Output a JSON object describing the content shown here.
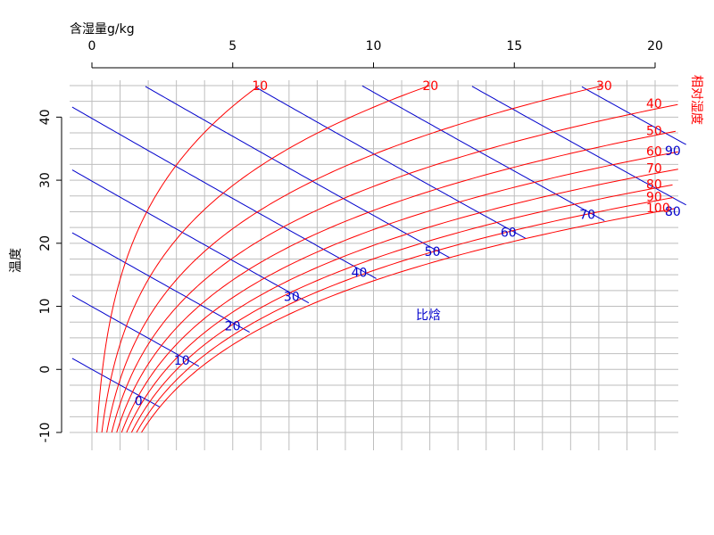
{
  "chart_data": {
    "type": "line",
    "title": "",
    "xlabel": "含湿量g/kg",
    "ylabel": "温度",
    "xlim": [
      0,
      20
    ],
    "ylim": [
      -10,
      45
    ],
    "x_ticks": [
      "0",
      "5",
      "10",
      "15",
      "20"
    ],
    "y_ticks": [
      "-10",
      "0",
      "10",
      "20",
      "30",
      "40"
    ],
    "x_axis_position": "top",
    "grid": true,
    "colors": {
      "rh": "#ff0000",
      "enthalpy": "#0000cc",
      "grid": "#bebebe",
      "axis": "#000000"
    },
    "rh_series_title": "相对湿度",
    "rh_series": [
      {
        "label": "10",
        "rh": 10
      },
      {
        "label": "20",
        "rh": 20
      },
      {
        "label": "30",
        "rh": 30
      },
      {
        "label": "40",
        "rh": 40
      },
      {
        "label": "50",
        "rh": 50
      },
      {
        "label": "60",
        "rh": 60
      },
      {
        "label": "70",
        "rh": 70
      },
      {
        "label": "80",
        "rh": 80
      },
      {
        "label": "90",
        "rh": 90
      },
      {
        "label": "100",
        "rh": 100
      }
    ],
    "enthalpy_series_title": "比焓",
    "enthalpy_series": [
      {
        "label": "0",
        "h": 0
      },
      {
        "label": "10",
        "h": 10
      },
      {
        "label": "20",
        "h": 20
      },
      {
        "label": "30",
        "h": 30
      },
      {
        "label": "40",
        "h": 40
      },
      {
        "label": "50",
        "h": 50
      },
      {
        "label": "60",
        "h": 60
      },
      {
        "label": "70",
        "h": 70
      },
      {
        "label": "80",
        "h": 80
      },
      {
        "label": "90",
        "h": 90
      }
    ]
  }
}
